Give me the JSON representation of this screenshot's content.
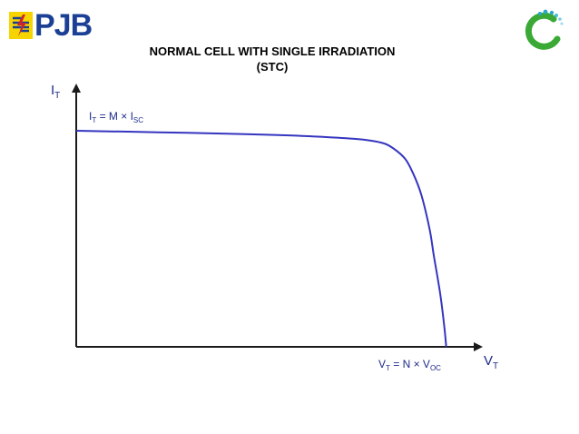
{
  "slide": {
    "title_line1": "NORMAL CELL WITH SINGLE IRRADIATION",
    "title_line2": "(STC)",
    "logo_left_text": "PJB",
    "colors": {
      "pjb_blue": "#1b3f95",
      "pjb_yellow": "#f5d400",
      "pjb_red": "#d2232a",
      "logo_green": "#3aa935",
      "logo_teal": "#2aa7c9",
      "curve": "#3535c0",
      "axis": "#1a1a1a",
      "label": "#1d2a8a"
    }
  },
  "chart_data": {
    "type": "line",
    "title": "NORMAL CELL WITH SINGLE IRRADIATION (STC)",
    "xlabel": "V",
    "xlabel_sub": "T",
    "ylabel": "I",
    "ylabel_sub": "T",
    "xlim": [
      0,
      1
    ],
    "ylim": [
      0,
      1
    ],
    "grid": false,
    "annotations": [
      {
        "main": "I",
        "sub": "T",
        "rest": " = M × I",
        "rest_sub": "SC",
        "x": 0.04,
        "y": 1.0
      },
      {
        "main": "V",
        "sub": "T",
        "rest": " = N × V",
        "rest_sub": "OC",
        "x": 0.83,
        "y": -0.06
      }
    ],
    "series": [
      {
        "x": [
          0.0,
          0.2,
          0.4,
          0.55,
          0.68,
          0.74,
          0.77,
          0.8,
          0.82,
          0.84,
          0.86,
          0.87,
          0.885,
          0.895,
          0.9
        ],
        "y": [
          1.0,
          0.993,
          0.985,
          0.976,
          0.962,
          0.946,
          0.92,
          0.87,
          0.8,
          0.7,
          0.54,
          0.42,
          0.25,
          0.1,
          0.0
        ]
      }
    ]
  }
}
